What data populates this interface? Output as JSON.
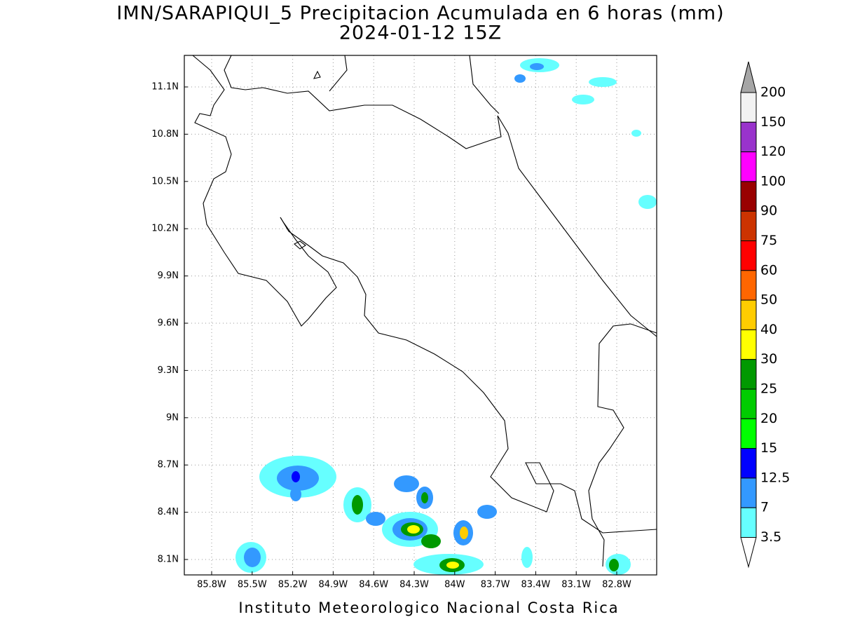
{
  "header": {
    "title": "IMN/SARAPIQUI_5 Precipitacion Acumulada en 6 horas (mm)",
    "subtitle": "2024-01-12 15Z"
  },
  "map": {
    "lon_labels": [
      "85.8W",
      "85.5W",
      "85.2W",
      "84.9W",
      "84.6W",
      "84.3W",
      "84W",
      "83.7W",
      "83.4W",
      "83.1W",
      "82.8W"
    ],
    "lat_labels": [
      "11.1N",
      "10.8N",
      "10.5N",
      "10.2N",
      "9.9N",
      "9.6N",
      "9.3N",
      "9N",
      "8.7N",
      "8.4N",
      "8.1N"
    ]
  },
  "colorbar": {
    "levels": [
      200,
      150,
      120,
      100,
      90,
      75,
      60,
      50,
      40,
      30,
      25,
      20,
      15,
      12.5,
      7,
      3.5
    ],
    "colors": [
      "#f2f2f2",
      "#9933cc",
      "#ff00ff",
      "#990000",
      "#cc3300",
      "#ff0000",
      "#ff6600",
      "#ffcc00",
      "#ffff00",
      "#009900",
      "#00cc00",
      "#00ff00",
      "#0000ff",
      "#3399ff",
      "#66ffff"
    ],
    "over_color": "#a6a6a6",
    "under_color": "#ffffff"
  },
  "footer": {
    "text": "Instituto Meteorologico Nacional Costa Rica"
  }
}
